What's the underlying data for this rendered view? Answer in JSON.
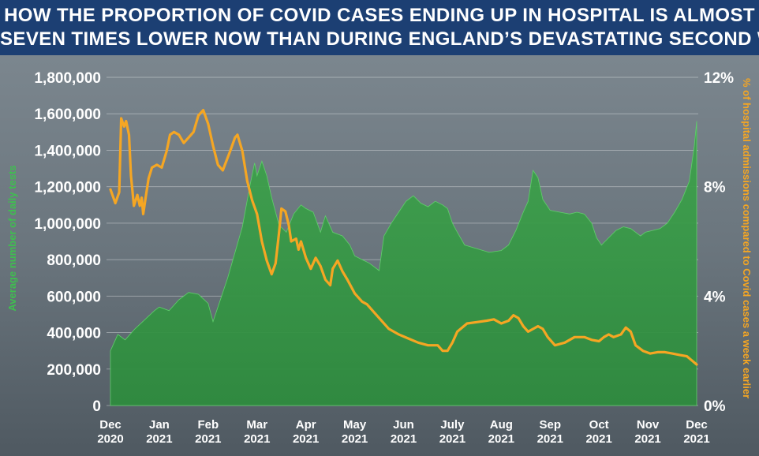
{
  "headline": {
    "line1": "HOW THE PROPORTION OF COVID CASES ENDING UP IN HOSPITAL IS ALMOST",
    "line2": "SEVEN TIMES LOWER NOW THAN DURING ENGLAND’S DEVASTATING SECOND WAVE"
  },
  "colors": {
    "header_bg": "#1c3f73",
    "tests_green": "#2ea043",
    "admissions_orange": "#f5a623",
    "background": "#5f6b73"
  },
  "chart_data": {
    "type": "area+line",
    "title": "HOW THE PROPORTION OF COVID CASES ENDING UP IN HOSPITAL IS ALMOST SEVEN TIMES LOWER NOW THAN DURING ENGLAND’S DEVASTATING SECOND WAVE",
    "x_range": [
      "2020-12-01",
      "2021-12-01"
    ],
    "x_ticks": [
      {
        "month": "Dec",
        "year": "2020"
      },
      {
        "month": "Jan",
        "year": "2021"
      },
      {
        "month": "Feb",
        "year": "2021"
      },
      {
        "month": "Mar",
        "year": "2021"
      },
      {
        "month": "Apr",
        "year": "2021"
      },
      {
        "month": "May",
        "year": "2021"
      },
      {
        "month": "Jun",
        "year": "2021"
      },
      {
        "month": "July",
        "year": "2021"
      },
      {
        "month": "Aug",
        "year": "2021"
      },
      {
        "month": "Sep",
        "year": "2021"
      },
      {
        "month": "Oct",
        "year": "2021"
      },
      {
        "month": "Nov",
        "year": "2021"
      },
      {
        "month": "Dec",
        "year": "2021"
      }
    ],
    "y_left": {
      "label": "Average number of daily tests",
      "ylim": [
        0,
        1800000
      ],
      "ticks": [
        "0",
        "200,000",
        "400,000",
        "600,000",
        "800,000",
        "1,000,000",
        "1,200,000",
        "1,400,000",
        "1,600,000",
        "1,800,000"
      ]
    },
    "y_right": {
      "label": "% of hospital admissions compared to Covid cases a week earlier",
      "ylim": [
        0,
        12
      ],
      "ticks": [
        "0%",
        "4%",
        "8%",
        "12%"
      ]
    },
    "series": [
      {
        "name": "Average number of daily tests",
        "axis": "left",
        "style": "area",
        "color": "#2ea043",
        "points": [
          [
            0.0,
            300000
          ],
          [
            0.15,
            390000
          ],
          [
            0.3,
            360000
          ],
          [
            0.5,
            420000
          ],
          [
            0.7,
            470000
          ],
          [
            0.9,
            520000
          ],
          [
            1.0,
            540000
          ],
          [
            1.2,
            520000
          ],
          [
            1.4,
            580000
          ],
          [
            1.6,
            620000
          ],
          [
            1.8,
            610000
          ],
          [
            2.0,
            560000
          ],
          [
            2.1,
            460000
          ],
          [
            2.25,
            580000
          ],
          [
            2.4,
            700000
          ],
          [
            2.55,
            840000
          ],
          [
            2.7,
            980000
          ],
          [
            2.85,
            1200000
          ],
          [
            2.95,
            1330000
          ],
          [
            3.0,
            1260000
          ],
          [
            3.1,
            1340000
          ],
          [
            3.2,
            1260000
          ],
          [
            3.3,
            1140000
          ],
          [
            3.45,
            990000
          ],
          [
            3.6,
            950000
          ],
          [
            3.75,
            1050000
          ],
          [
            3.9,
            1100000
          ],
          [
            4.0,
            1080000
          ],
          [
            4.15,
            1060000
          ],
          [
            4.3,
            950000
          ],
          [
            4.4,
            1040000
          ],
          [
            4.55,
            950000
          ],
          [
            4.75,
            930000
          ],
          [
            4.9,
            880000
          ],
          [
            5.0,
            820000
          ],
          [
            5.15,
            800000
          ],
          [
            5.3,
            780000
          ],
          [
            5.5,
            740000
          ],
          [
            5.6,
            930000
          ],
          [
            5.75,
            1000000
          ],
          [
            5.9,
            1060000
          ],
          [
            6.05,
            1120000
          ],
          [
            6.2,
            1150000
          ],
          [
            6.35,
            1110000
          ],
          [
            6.5,
            1090000
          ],
          [
            6.65,
            1120000
          ],
          [
            6.8,
            1100000
          ],
          [
            6.9,
            1080000
          ],
          [
            7.0,
            1000000
          ],
          [
            7.1,
            950000
          ],
          [
            7.25,
            880000
          ],
          [
            7.5,
            860000
          ],
          [
            7.75,
            840000
          ],
          [
            8.0,
            850000
          ],
          [
            8.15,
            880000
          ],
          [
            8.3,
            960000
          ],
          [
            8.45,
            1060000
          ],
          [
            8.55,
            1120000
          ],
          [
            8.65,
            1290000
          ],
          [
            8.75,
            1250000
          ],
          [
            8.85,
            1130000
          ],
          [
            9.0,
            1070000
          ],
          [
            9.2,
            1060000
          ],
          [
            9.4,
            1050000
          ],
          [
            9.55,
            1060000
          ],
          [
            9.7,
            1050000
          ],
          [
            9.85,
            1000000
          ],
          [
            9.95,
            920000
          ],
          [
            10.05,
            880000
          ],
          [
            10.2,
            920000
          ],
          [
            10.35,
            960000
          ],
          [
            10.5,
            980000
          ],
          [
            10.65,
            970000
          ],
          [
            10.75,
            950000
          ],
          [
            10.85,
            930000
          ],
          [
            10.95,
            950000
          ],
          [
            11.1,
            960000
          ],
          [
            11.25,
            970000
          ],
          [
            11.4,
            1000000
          ],
          [
            11.55,
            1060000
          ],
          [
            11.7,
            1130000
          ],
          [
            11.85,
            1230000
          ],
          [
            11.95,
            1420000
          ],
          [
            12.0,
            1560000
          ]
        ]
      },
      {
        "name": "% of hospital admissions compared to Covid cases a week earlier",
        "axis": "right",
        "style": "line",
        "color": "#f5a623",
        "points": [
          [
            0.0,
            7.9
          ],
          [
            0.1,
            7.4
          ],
          [
            0.18,
            7.8
          ],
          [
            0.22,
            10.5
          ],
          [
            0.28,
            10.2
          ],
          [
            0.32,
            10.4
          ],
          [
            0.38,
            9.9
          ],
          [
            0.42,
            8.4
          ],
          [
            0.48,
            7.3
          ],
          [
            0.55,
            7.7
          ],
          [
            0.6,
            7.3
          ],
          [
            0.64,
            7.6
          ],
          [
            0.67,
            7.0
          ],
          [
            0.72,
            7.6
          ],
          [
            0.78,
            8.3
          ],
          [
            0.85,
            8.7
          ],
          [
            0.95,
            8.8
          ],
          [
            1.05,
            8.7
          ],
          [
            1.15,
            9.3
          ],
          [
            1.22,
            9.9
          ],
          [
            1.3,
            10.0
          ],
          [
            1.4,
            9.9
          ],
          [
            1.5,
            9.6
          ],
          [
            1.6,
            9.8
          ],
          [
            1.7,
            10.0
          ],
          [
            1.8,
            10.6
          ],
          [
            1.9,
            10.8
          ],
          [
            2.0,
            10.3
          ],
          [
            2.1,
            9.5
          ],
          [
            2.2,
            8.8
          ],
          [
            2.3,
            8.6
          ],
          [
            2.45,
            9.3
          ],
          [
            2.55,
            9.8
          ],
          [
            2.6,
            9.9
          ],
          [
            2.7,
            9.3
          ],
          [
            2.8,
            8.2
          ],
          [
            2.9,
            7.5
          ],
          [
            3.0,
            7.0
          ],
          [
            3.1,
            6.0
          ],
          [
            3.2,
            5.3
          ],
          [
            3.3,
            4.8
          ],
          [
            3.38,
            5.2
          ],
          [
            3.45,
            6.3
          ],
          [
            3.5,
            7.2
          ],
          [
            3.58,
            7.1
          ],
          [
            3.65,
            6.6
          ],
          [
            3.7,
            6.0
          ],
          [
            3.8,
            6.1
          ],
          [
            3.85,
            5.7
          ],
          [
            3.9,
            6.0
          ],
          [
            4.0,
            5.4
          ],
          [
            4.1,
            5.0
          ],
          [
            4.2,
            5.4
          ],
          [
            4.3,
            5.1
          ],
          [
            4.4,
            4.6
          ],
          [
            4.5,
            4.4
          ],
          [
            4.55,
            5.0
          ],
          [
            4.65,
            5.3
          ],
          [
            4.75,
            4.9
          ],
          [
            4.85,
            4.6
          ],
          [
            5.0,
            4.1
          ],
          [
            5.15,
            3.8
          ],
          [
            5.25,
            3.7
          ],
          [
            5.35,
            3.5
          ],
          [
            5.5,
            3.2
          ],
          [
            5.7,
            2.8
          ],
          [
            5.9,
            2.6
          ],
          [
            6.1,
            2.45
          ],
          [
            6.3,
            2.3
          ],
          [
            6.5,
            2.2
          ],
          [
            6.7,
            2.2
          ],
          [
            6.8,
            2.0
          ],
          [
            6.9,
            2.0
          ],
          [
            7.0,
            2.3
          ],
          [
            7.1,
            2.7
          ],
          [
            7.3,
            3.0
          ],
          [
            7.5,
            3.05
          ],
          [
            7.7,
            3.1
          ],
          [
            7.85,
            3.15
          ],
          [
            8.0,
            3.0
          ],
          [
            8.15,
            3.1
          ],
          [
            8.25,
            3.3
          ],
          [
            8.35,
            3.2
          ],
          [
            8.45,
            2.9
          ],
          [
            8.55,
            2.7
          ],
          [
            8.75,
            2.9
          ],
          [
            8.85,
            2.8
          ],
          [
            8.95,
            2.5
          ],
          [
            9.1,
            2.2
          ],
          [
            9.3,
            2.3
          ],
          [
            9.5,
            2.5
          ],
          [
            9.7,
            2.5
          ],
          [
            9.85,
            2.4
          ],
          [
            10.0,
            2.35
          ],
          [
            10.1,
            2.5
          ],
          [
            10.2,
            2.6
          ],
          [
            10.3,
            2.5
          ],
          [
            10.45,
            2.6
          ],
          [
            10.55,
            2.85
          ],
          [
            10.65,
            2.7
          ],
          [
            10.75,
            2.2
          ],
          [
            10.9,
            2.0
          ],
          [
            11.05,
            1.9
          ],
          [
            11.2,
            1.95
          ],
          [
            11.35,
            1.95
          ],
          [
            11.5,
            1.9
          ],
          [
            11.65,
            1.85
          ],
          [
            11.8,
            1.8
          ],
          [
            11.9,
            1.65
          ],
          [
            12.0,
            1.5
          ]
        ]
      }
    ]
  }
}
